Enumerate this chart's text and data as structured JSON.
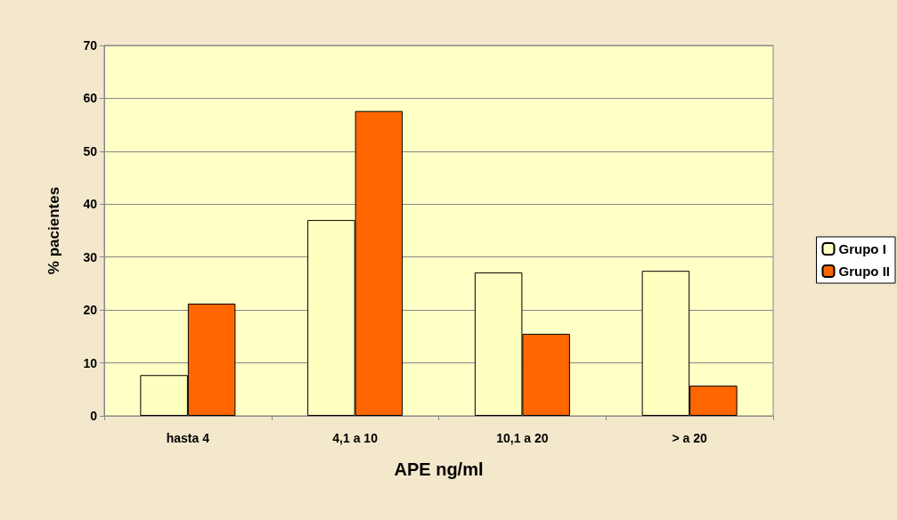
{
  "chart_data": {
    "type": "bar",
    "xlabel": "APE ng/ml",
    "ylabel": "% pacientes",
    "categories": [
      "hasta 4",
      "4,1 a 10",
      "10,1 a 20",
      "> a 20"
    ],
    "series": [
      {
        "name": "Grupo I",
        "color": "#ffffc0",
        "values": [
          7.7,
          37,
          27.1,
          27.4
        ]
      },
      {
        "name": "Grupo II",
        "color": "#ff6600",
        "values": [
          21.2,
          57.6,
          15.5,
          5.7
        ]
      }
    ],
    "ylim": [
      0,
      70
    ],
    "yticks": [
      0,
      10,
      20,
      30,
      40,
      50,
      60,
      70
    ],
    "grid": "y",
    "legend": "right"
  }
}
